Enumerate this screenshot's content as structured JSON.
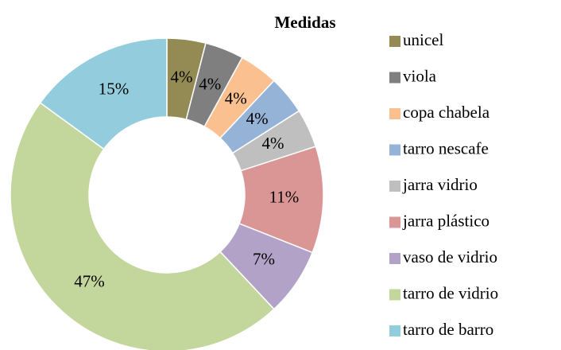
{
  "chart_data": {
    "type": "pie",
    "title": "Medidas",
    "donut": true,
    "categories": [
      "unicel",
      "viola",
      "copa chabela",
      "tarro nescafe",
      "jarra vidrio",
      "jarra plástico",
      "vaso de vidrio",
      "tarro de vidrio",
      "tarro de barro"
    ],
    "values": [
      4,
      4,
      4,
      4,
      4,
      11,
      7,
      47,
      15
    ],
    "value_labels": [
      "4%",
      "4%",
      "4%",
      "4%",
      "4%",
      "11%",
      "7%",
      "47%",
      "15%"
    ],
    "colors": [
      "#948A54",
      "#7F7F7F",
      "#FAC090",
      "#95B3D7",
      "#BFBFBF",
      "#D99694",
      "#B3A2C7",
      "#C3D69B",
      "#93CDDD"
    ],
    "legend": "right"
  }
}
